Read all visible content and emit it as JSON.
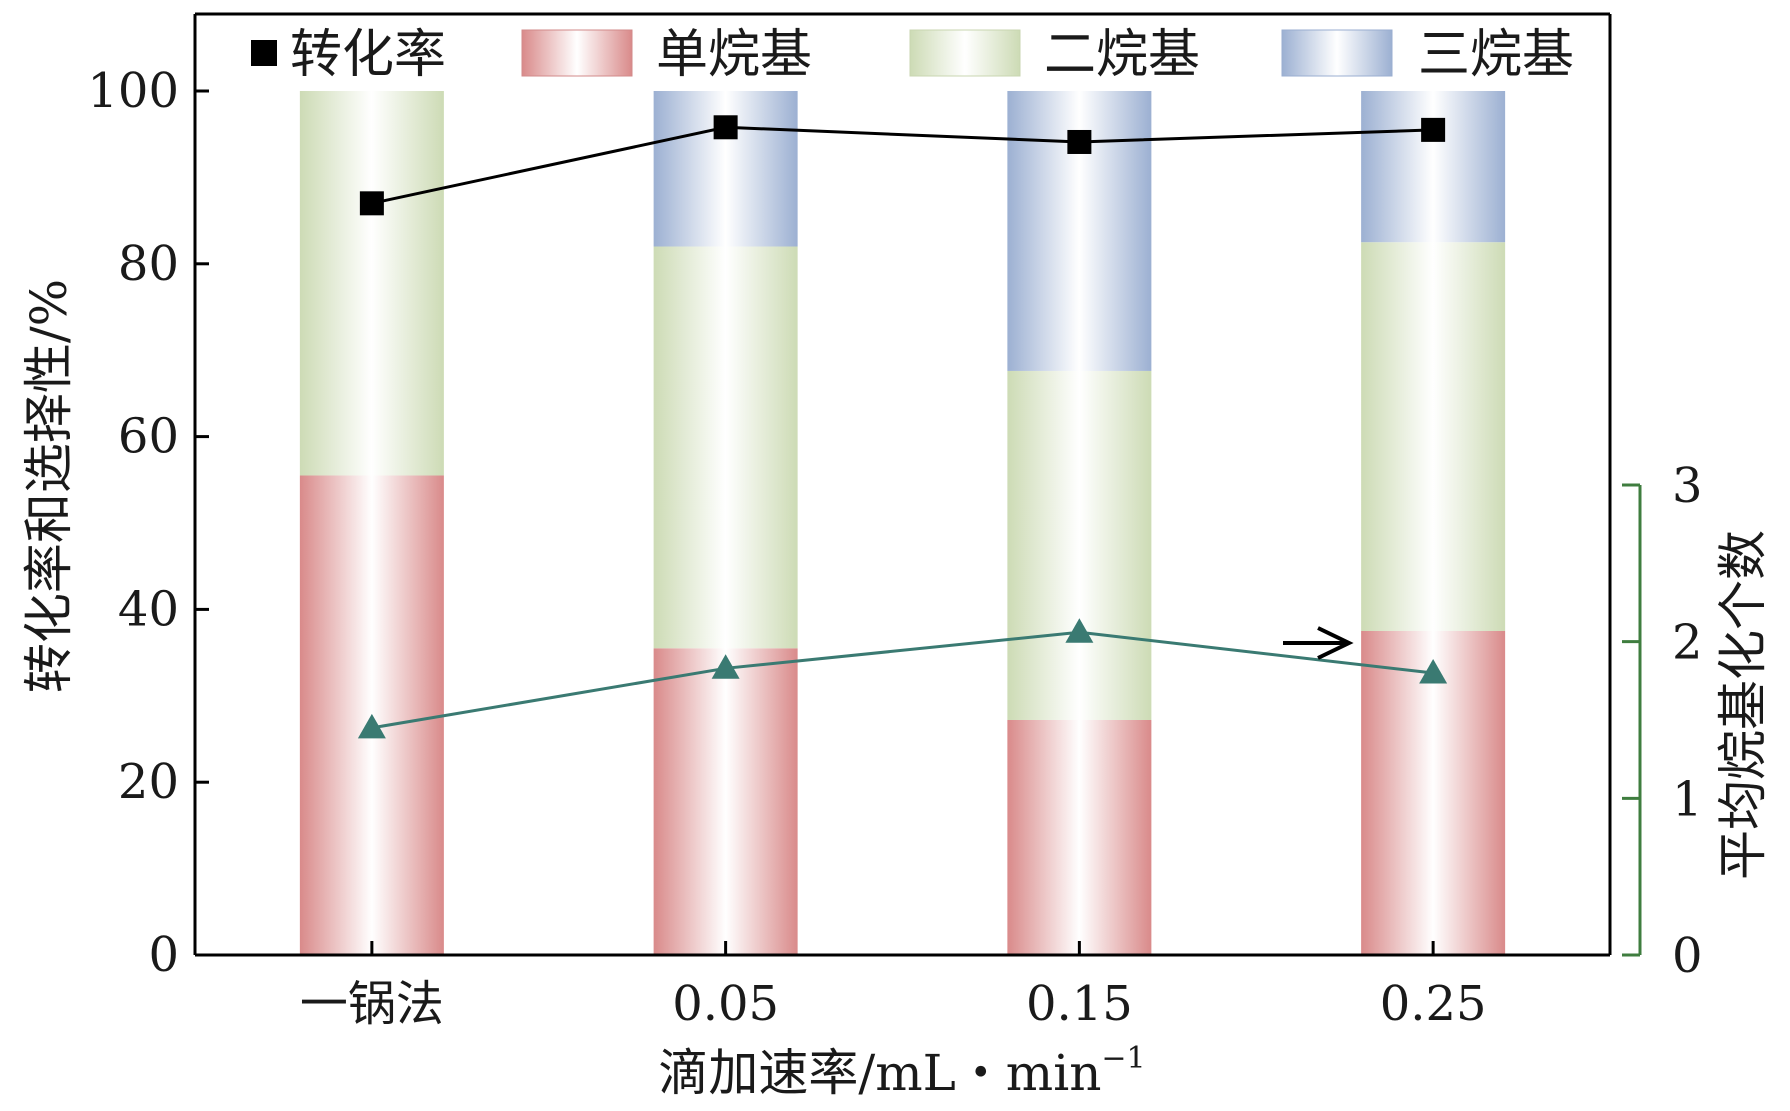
{
  "chart_data": {
    "type": "bar",
    "categories": [
      "一锅法",
      "0.05",
      "0.15",
      "0.25"
    ],
    "xlabel": "滴加速率/mL・min",
    "xlabel_sup": "−1",
    "ylabel": "转化率和选择性/%",
    "ylabel_right": "平均烷基化个数",
    "ylim": [
      0,
      100
    ],
    "y_ticks": [
      "0",
      "20",
      "40",
      "60",
      "80",
      "100"
    ],
    "ylim_right": [
      0,
      3
    ],
    "y_right_ticks": [
      "0",
      "1",
      "2",
      "3"
    ],
    "legend_position": "top",
    "stacked_series": [
      {
        "name": "单烷基",
        "values": [
          55.5,
          35.5,
          27.2,
          37.5
        ],
        "color": "#d98c8c"
      },
      {
        "name": "二烷基",
        "values": [
          44.5,
          46.5,
          40.4,
          45.0
        ],
        "color": "#cfdcb8"
      },
      {
        "name": "三烷基",
        "values": [
          0,
          18.0,
          32.4,
          17.5
        ],
        "color": "#9fb2d3"
      }
    ],
    "line_series": [
      {
        "name": "转化率",
        "axis": "left",
        "marker": "square",
        "values": [
          87.0,
          95.8,
          94.1,
          95.5
        ],
        "color": "#000000"
      },
      {
        "axis": "right",
        "marker": "triangle",
        "values": [
          1.45,
          1.83,
          2.06,
          1.8
        ],
        "color": "#3a7a72"
      }
    ],
    "annotation": {
      "text": "→",
      "points_to": "right-axis",
      "position": "near 0.25 triangle"
    },
    "right_axis_color": "#3f7d3f"
  }
}
